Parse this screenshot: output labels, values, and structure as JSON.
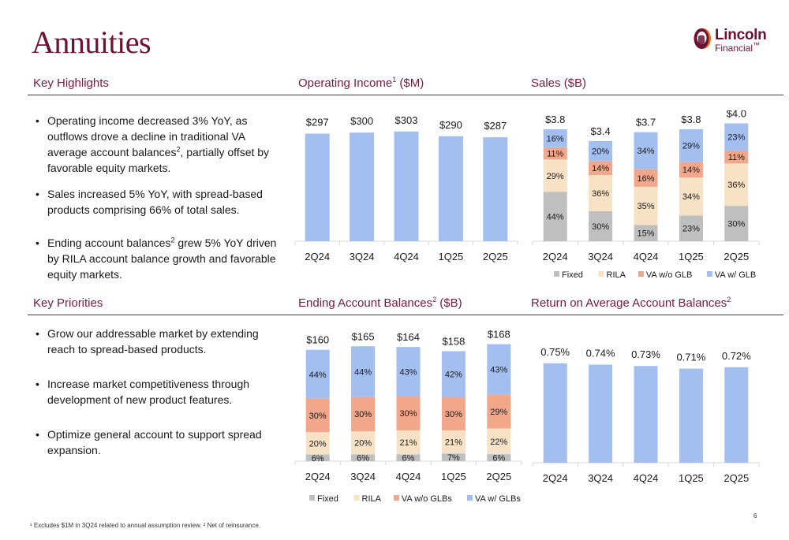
{
  "page": {
    "title": "Annuities",
    "logo": {
      "line1": "Lincoln",
      "line2": "Financial",
      "trademark": "™"
    },
    "page_number": "6",
    "footnote": "¹ Excludes $1M in 3Q24 related to annual assumption review. ² Net of reinsurance."
  },
  "sections": {
    "key_highlights": {
      "title": "Key Highlights",
      "bullets": [
        "Operating income decreased 3% YoY, as outflows drove a decline in traditional VA average account balances², partially offset by favorable equity markets.",
        "Sales increased 5% YoY, with spread-based products comprising 66% of total sales.",
        "Ending account balances² grew 5% YoY driven by RILA account balance growth and favorable equity markets."
      ]
    },
    "key_priorities": {
      "title": "Key Priorities",
      "bullets": [
        "Grow our addressable market by extending reach to spread-based products.",
        "Increase market competitiveness through development of new product features.",
        "Optimize general account to support spread expansion."
      ]
    }
  },
  "colors": {
    "brand": "#6e1232",
    "heading": "#7a1a40",
    "fixed": "#bfbfbf",
    "rila": "#f7e2c6",
    "va_wo": "#f2a68a",
    "va_w": "#a2bff0"
  },
  "chart_data": [
    {
      "id": "operating_income",
      "type": "bar",
      "title": "Operating Income¹ ($M)",
      "categories": [
        "2Q24",
        "3Q24",
        "4Q24",
        "1Q25",
        "2Q25"
      ],
      "values": [
        297,
        300,
        303,
        290,
        287
      ],
      "labels": [
        "$297",
        "$300",
        "$303",
        "$290",
        "$287"
      ],
      "xlabel": "",
      "ylabel": "",
      "ylim": [
        0,
        320
      ],
      "grid": false
    },
    {
      "id": "sales",
      "type": "bar",
      "stacked": true,
      "title": "Sales ($B)",
      "categories": [
        "2Q24",
        "3Q24",
        "4Q24",
        "1Q25",
        "2Q25"
      ],
      "totals": [
        3.8,
        3.4,
        3.7,
        3.8,
        4.0
      ],
      "total_labels": [
        "$3.8",
        "$3.4",
        "$3.7",
        "$3.8",
        "$4.0"
      ],
      "series": [
        {
          "name": "Fixed",
          "values": [
            44,
            30,
            15,
            23,
            30
          ]
        },
        {
          "name": "RILA",
          "values": [
            29,
            36,
            35,
            34,
            36
          ]
        },
        {
          "name": "VA w/o GLB",
          "values": [
            11,
            14,
            16,
            14,
            11
          ]
        },
        {
          "name": "VA w/ GLB",
          "values": [
            16,
            20,
            34,
            29,
            23
          ]
        }
      ],
      "segment_unit": "%",
      "legend": "bottom",
      "ylim": [
        0,
        4.2
      ],
      "grid": false
    },
    {
      "id": "ending_account_balances",
      "type": "bar",
      "stacked": true,
      "title": "Ending Account Balances² ($B)",
      "categories": [
        "2Q24",
        "3Q24",
        "4Q24",
        "1Q25",
        "2Q25"
      ],
      "totals": [
        160,
        165,
        164,
        158,
        168
      ],
      "total_labels": [
        "$160",
        "$165",
        "$164",
        "$158",
        "$168"
      ],
      "series": [
        {
          "name": "Fixed",
          "values": [
            6,
            6,
            6,
            7,
            6
          ]
        },
        {
          "name": "RILA",
          "values": [
            20,
            20,
            21,
            21,
            22
          ]
        },
        {
          "name": "VA w/o GLBs",
          "values": [
            30,
            30,
            30,
            30,
            29
          ]
        },
        {
          "name": "VA w/ GLBs",
          "values": [
            44,
            44,
            43,
            42,
            43
          ]
        }
      ],
      "segment_unit": "%",
      "legend": "bottom",
      "ylim": [
        0,
        180
      ],
      "grid": false
    },
    {
      "id": "return_on_avg_balances",
      "type": "bar",
      "title": "Return on Average Account Balances²",
      "categories": [
        "2Q24",
        "3Q24",
        "4Q24",
        "1Q25",
        "2Q25"
      ],
      "values": [
        0.75,
        0.74,
        0.73,
        0.71,
        0.72
      ],
      "labels": [
        "0.75%",
        "0.74%",
        "0.73%",
        "0.71%",
        "0.72%"
      ],
      "ylim": [
        0,
        0.88
      ],
      "grid": false
    }
  ]
}
